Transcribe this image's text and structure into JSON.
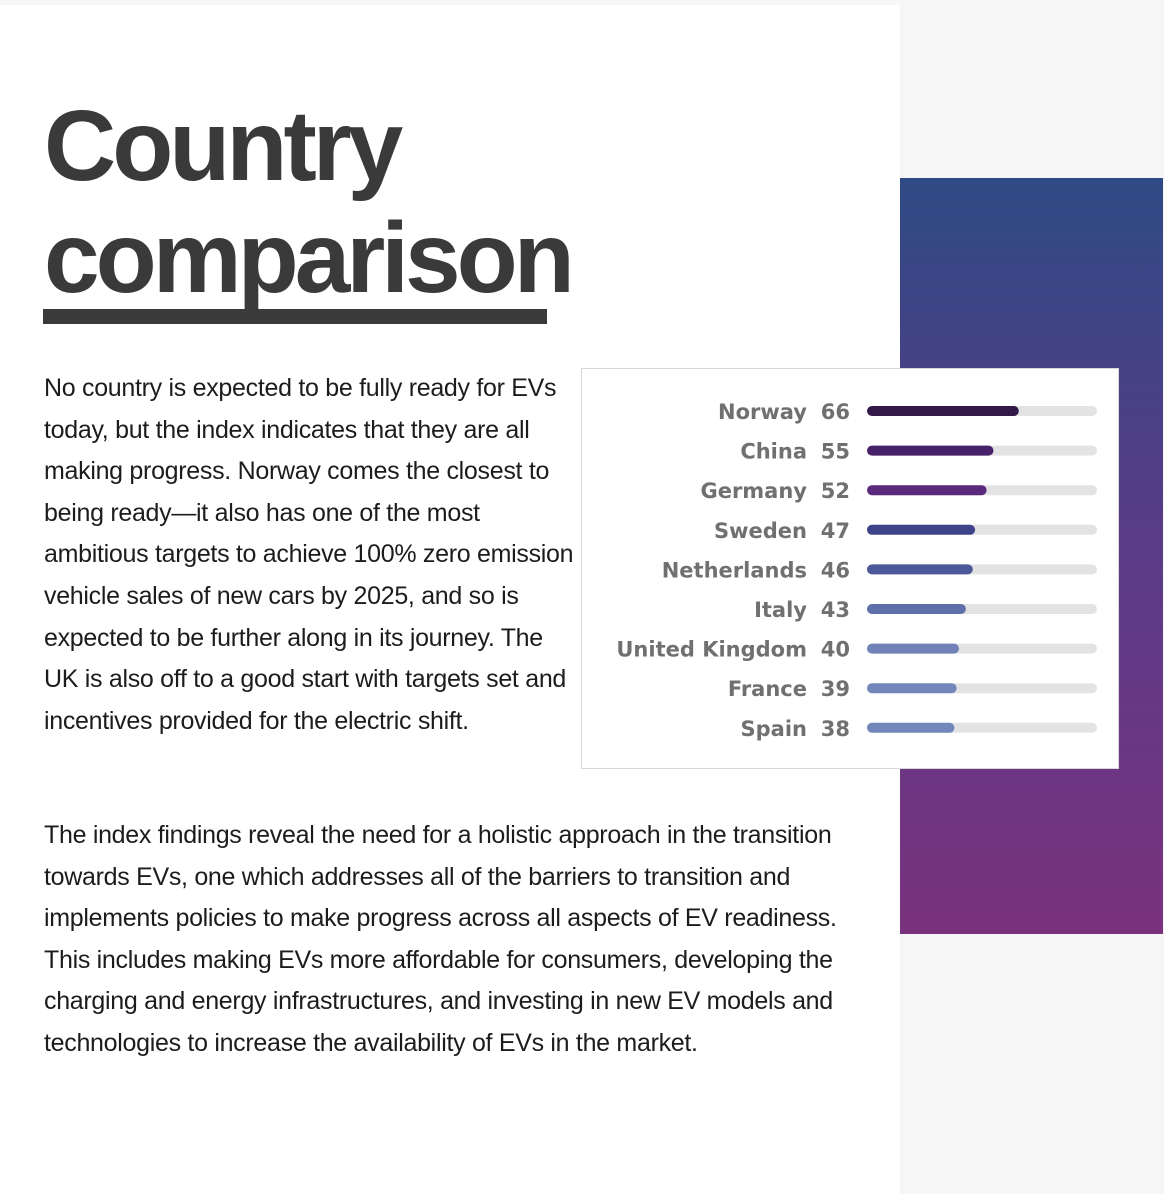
{
  "heading": {
    "line1": "Country",
    "line2": "comparison"
  },
  "paragraphs": [
    "No country is expected to be fully ready for EVs today, but the index indicates that they are all making progress. Norway comes the closest to being ready—it also has one of the most ambitious targets to achieve 100% zero emission vehicle sales of new cars by 2025, and so is expected to be further along in its journey. The UK is also off to a good start with targets set and incentives provided for the electric shift.",
    "The index findings reveal the need for a holistic approach in the transition towards EVs, one which addresses all of the barriers to transition and implements policies to make progress across all aspects of EV readiness. This includes making EVs more affordable for consumers, developing the charging and energy infrastructures, and investing in new EV models and technologies to increase the availability of EVs in the market."
  ],
  "colors": {
    "accent_gradient_top": "#2f4a86",
    "accent_gradient_bottom": "#7a327e",
    "track": "#e3e3e3",
    "heading": "#3a3a3a"
  },
  "chart_data": {
    "type": "bar",
    "orientation": "horizontal",
    "categories": [
      "Norway",
      "China",
      "Germany",
      "Sweden",
      "Netherlands",
      "Italy",
      "United Kingdom",
      "France",
      "Spain"
    ],
    "values": [
      66,
      55,
      52,
      47,
      46,
      43,
      40,
      39,
      38
    ],
    "xlim": [
      0,
      100
    ],
    "bar_colors": [
      "#32194a",
      "#47226a",
      "#5a2a7d",
      "#3e4489",
      "#4b5998",
      "#5f6fa9",
      "#7082b7",
      "#7487ba",
      "#7186b9"
    ],
    "track_color": "#e3e3e3",
    "show_value_labels": true,
    "grid": false
  }
}
